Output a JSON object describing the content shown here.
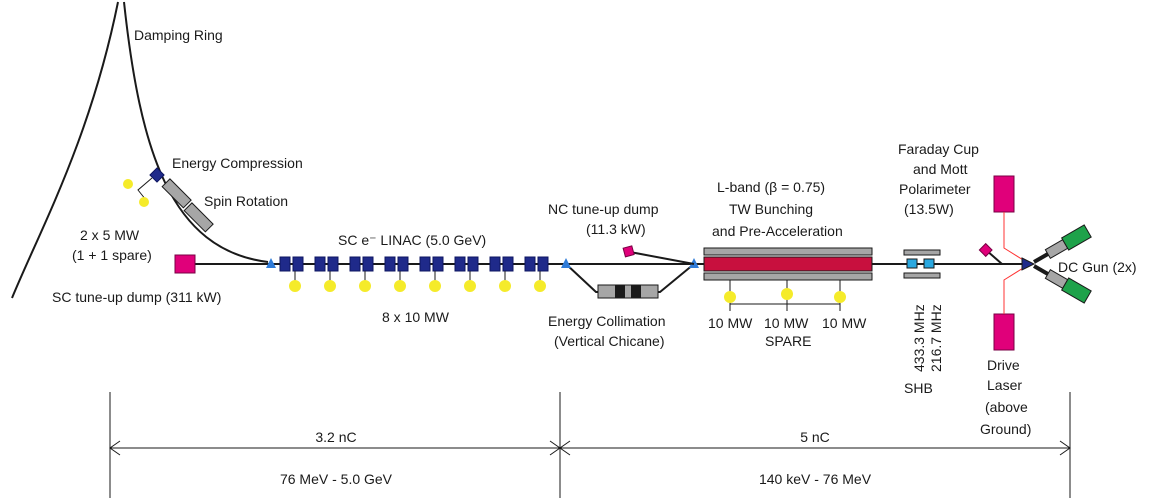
{
  "labels": {
    "damping_ring": "Damping Ring",
    "energy_compression": "Energy Compression",
    "spin_rotation": "Spin Rotation",
    "rf_2x5_line1": "2 x 5 MW",
    "rf_2x5_line2": "(1 + 1 spare)",
    "sc_tuneup_dump": "SC tune-up dump (311 kW)",
    "sc_linac": "SC e⁻ LINAC (5.0 GeV)",
    "rf_8x10": "8 x 10 MW",
    "nc_dump_line1": "NC tune-up dump",
    "nc_dump_line2": "(11.3 kW)",
    "energy_collimation_line1": "Energy Collimation",
    "energy_collimation_line2": "(Vertical Chicane)",
    "lband_line1": "L-band (β = 0.75)",
    "lband_line2": "TW Bunching",
    "lband_line3": "and Pre-Acceleration",
    "lband_rf1": "10 MW",
    "lband_rf2": "10 MW",
    "lband_rf3": "10 MW",
    "lband_spare": "SPARE",
    "faraday_line1": "Faraday Cup",
    "faraday_line2": "and Mott",
    "faraday_line3": "Polarimeter",
    "faraday_line4": "(13.5W)",
    "shb_freq1": "433.3 MHz",
    "shb_freq2": "216.7 MHz",
    "shb": "SHB",
    "drive_laser_line1": "Drive",
    "drive_laser_line2": "Laser",
    "drive_laser_line3": "(above",
    "drive_laser_line4": "Ground)",
    "dc_gun": "DC Gun (2x)"
  },
  "dimensions": {
    "left_charge": "3.2 nC",
    "left_energy": "76 MeV - 5.0 GeV",
    "right_charge": "5 nC",
    "right_energy": "140 keV - 76 MeV"
  },
  "colors": {
    "cavity": "#1f2a8a",
    "klystron": "#f5eb2a",
    "dump": "#e0007a",
    "lband_structure": "#c8103e",
    "gun_cathode": "#1ea24a",
    "shb_cavity": "#2aa8e0",
    "laser_beam": "#ff3333"
  }
}
